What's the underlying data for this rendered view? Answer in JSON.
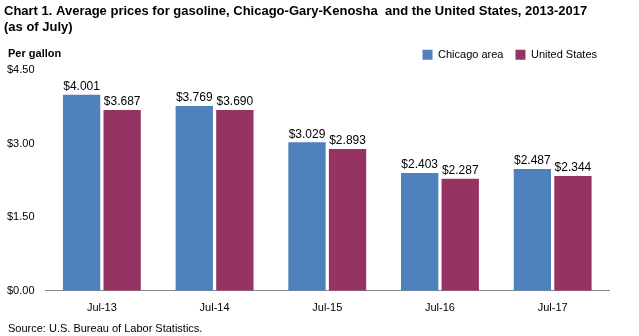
{
  "chart_data": {
    "type": "bar",
    "title": [
      "Chart 1. Average prices for gasoline, Chicago-Gary-Kenosha  and the United States, 2013-2017",
      "(as of July)"
    ],
    "ylabel": "Per gallon",
    "source": "Source: U.S. Bureau of Labor Statistics.",
    "categories": [
      "Jul-13",
      "Jul-14",
      "Jul-15",
      "Jul-16",
      "Jul-17"
    ],
    "series": [
      {
        "name": "Chicago area",
        "color": "#4f81bd",
        "values": [
          4.001,
          3.769,
          3.029,
          2.403,
          2.487
        ],
        "value_labels": [
          "$4.001",
          "$3.769",
          "$3.029",
          "$2.403",
          "$2.487"
        ]
      },
      {
        "name": "United States",
        "color": "#953463",
        "values": [
          3.687,
          3.69,
          2.893,
          2.287,
          2.344
        ],
        "value_labels": [
          "$3.687",
          "$3.690",
          "$2.893",
          "$2.287",
          "$2.344"
        ]
      }
    ],
    "ylim": [
      0,
      4.5
    ],
    "yticks": [
      {
        "value": 0,
        "label": "$0.00"
      },
      {
        "value": 1.5,
        "label": "$1.50"
      },
      {
        "value": 3,
        "label": "$3.00"
      },
      {
        "value": 4.5,
        "label": "$4.50"
      }
    ],
    "grid": false,
    "legend": "top-right",
    "data_labels": true
  }
}
